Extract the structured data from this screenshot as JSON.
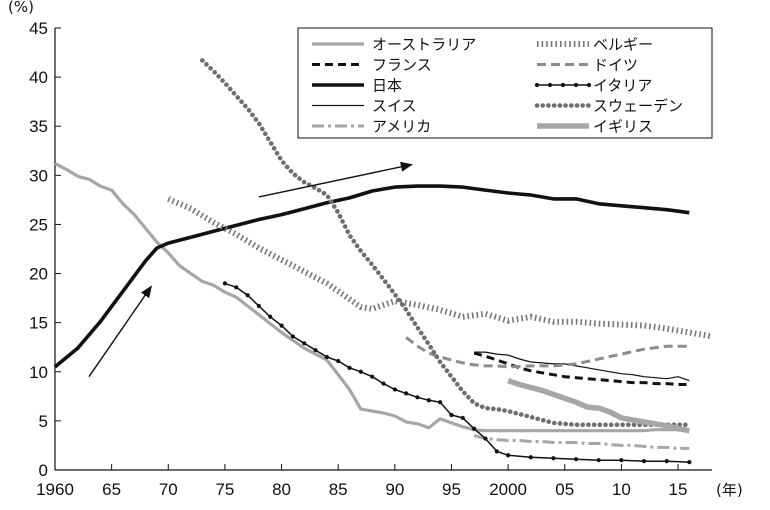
{
  "chart_data": {
    "type": "line",
    "y_unit_label": "(%)",
    "x_unit_label": "(年)",
    "ylim": [
      0,
      45
    ],
    "xlim": [
      1960,
      2018
    ],
    "y_ticks": [
      0,
      5,
      10,
      15,
      20,
      25,
      30,
      35,
      40,
      45
    ],
    "x_ticks": [
      {
        "value": 1960,
        "label": "1960"
      },
      {
        "value": 1965,
        "label": "65"
      },
      {
        "value": 1970,
        "label": "70"
      },
      {
        "value": 1975,
        "label": "75"
      },
      {
        "value": 1980,
        "label": "80"
      },
      {
        "value": 1985,
        "label": "85"
      },
      {
        "value": 1990,
        "label": "90"
      },
      {
        "value": 1995,
        "label": "95"
      },
      {
        "value": 2000,
        "label": "2000"
      },
      {
        "value": 2005,
        "label": "05"
      },
      {
        "value": 2010,
        "label": "10"
      },
      {
        "value": 2015,
        "label": "15"
      }
    ],
    "grid": false,
    "legend_position": "top-right",
    "annotations": [
      {
        "type": "arrow",
        "from": [
          1963,
          9.5
        ],
        "to": [
          1968.5,
          18.7
        ]
      },
      {
        "type": "arrow",
        "from": [
          1978,
          27.8
        ],
        "to": [
          1991.5,
          31.1
        ]
      }
    ],
    "series": [
      {
        "name": "オーストラリア",
        "style": "thick-gray-solid",
        "color": "#a6a6a6",
        "x": [
          1960,
          1961,
          1962,
          1963,
          1964,
          1965,
          1966,
          1967,
          1968,
          1969,
          1970,
          1971,
          1972,
          1973,
          1974,
          1975,
          1976,
          1977,
          1978,
          1979,
          1980,
          1981,
          1982,
          1983,
          1984,
          1985,
          1986,
          1987,
          1988,
          1989,
          1990,
          1991,
          1992,
          1993,
          1994,
          1995,
          1996,
          1997,
          1998,
          1999,
          2000,
          2001,
          2002,
          2003,
          2004,
          2005,
          2006,
          2007,
          2008,
          2009,
          2010,
          2011,
          2012,
          2013,
          2014,
          2015,
          2016
        ],
        "y": [
          31.2,
          30.6,
          29.9,
          29.6,
          28.9,
          28.5,
          27.1,
          26.0,
          24.6,
          23.2,
          22.1,
          20.8,
          20.0,
          19.2,
          18.8,
          18.1,
          17.6,
          16.7,
          15.8,
          14.9,
          14.0,
          13.2,
          12.4,
          11.8,
          11.2,
          9.7,
          8.2,
          6.2,
          6.0,
          5.8,
          5.5,
          4.9,
          4.7,
          4.3,
          5.2,
          4.8,
          4.4,
          4.1,
          4.0,
          4.0,
          4.0,
          4.0,
          4.0,
          4.0,
          4.0,
          4.0,
          4.0,
          4.0,
          4.0,
          4.0,
          4.0,
          4.0,
          4.0,
          4.1,
          4.1,
          4.1,
          4.1
        ]
      },
      {
        "name": "フランス",
        "style": "thick-black-dashed",
        "color": "#111111",
        "x": [
          1997,
          1998,
          1999,
          2000,
          2001,
          2002,
          2003,
          2004,
          2005,
          2006,
          2007,
          2008,
          2009,
          2010,
          2011,
          2012,
          2013,
          2014,
          2015,
          2016
        ],
        "y": [
          11.9,
          11.6,
          11.2,
          10.8,
          10.4,
          10.1,
          9.9,
          9.7,
          9.5,
          9.4,
          9.3,
          9.2,
          9.1,
          9.0,
          8.9,
          8.9,
          8.8,
          8.8,
          8.7,
          8.7
        ]
      },
      {
        "name": "日本",
        "style": "very-thick-black-solid",
        "color": "#111111",
        "x": [
          1960,
          1962,
          1964,
          1966,
          1968,
          1969,
          1970,
          1972,
          1974,
          1976,
          1978,
          1980,
          1982,
          1984,
          1986,
          1988,
          1990,
          1992,
          1994,
          1996,
          1998,
          2000,
          2002,
          2004,
          2006,
          2008,
          2010,
          2012,
          2014,
          2016
        ],
        "y": [
          10.5,
          12.4,
          15.1,
          18.2,
          21.3,
          22.6,
          23.1,
          23.7,
          24.3,
          24.9,
          25.5,
          26.0,
          26.6,
          27.2,
          27.7,
          28.4,
          28.8,
          28.9,
          28.9,
          28.8,
          28.5,
          28.2,
          28.0,
          27.6,
          27.6,
          27.1,
          26.9,
          26.7,
          26.5,
          26.2
        ]
      },
      {
        "name": "スイス",
        "style": "thin-black-solid",
        "color": "#111111",
        "x": [
          1997,
          1998,
          1999,
          2000,
          2001,
          2002,
          2003,
          2004,
          2005,
          2006,
          2007,
          2008,
          2009,
          2010,
          2011,
          2012,
          2013,
          2014,
          2015,
          2016
        ],
        "y": [
          12.0,
          12.0,
          11.8,
          11.7,
          11.3,
          11.0,
          10.9,
          10.8,
          10.8,
          10.6,
          10.4,
          10.2,
          10.0,
          9.8,
          9.7,
          9.5,
          9.4,
          9.3,
          9.5,
          9.1
        ]
      },
      {
        "name": "アメリカ",
        "style": "gray-dash-dot",
        "color": "#a6a6a6",
        "x": [
          1997,
          1998,
          1999,
          2000,
          2001,
          2002,
          2003,
          2004,
          2005,
          2006,
          2007,
          2008,
          2009,
          2010,
          2011,
          2012,
          2013,
          2014,
          2015,
          2016
        ],
        "y": [
          3.5,
          3.2,
          3.1,
          3.0,
          3.0,
          2.9,
          2.9,
          2.8,
          2.8,
          2.8,
          2.7,
          2.7,
          2.6,
          2.5,
          2.5,
          2.4,
          2.3,
          2.3,
          2.2,
          2.2
        ]
      },
      {
        "name": "ベルギー",
        "style": "gray-vertical-hatch",
        "color": "#777777",
        "x": [
          1970,
          1972,
          1974,
          1976,
          1978,
          1980,
          1982,
          1984,
          1986,
          1987,
          1988,
          1990,
          1992,
          1994,
          1996,
          1998,
          2000,
          2002,
          2004,
          2006,
          2008,
          2010,
          2012,
          2014,
          2016,
          2018
        ],
        "y": [
          27.6,
          26.6,
          25.2,
          24.0,
          22.6,
          21.4,
          20.2,
          19.0,
          17.4,
          16.6,
          16.4,
          17.2,
          16.8,
          16.3,
          15.6,
          15.9,
          15.2,
          15.6,
          15.1,
          15.1,
          14.9,
          14.8,
          14.7,
          14.4,
          14.0,
          13.6
        ]
      },
      {
        "name": "ドイツ",
        "style": "gray-dashed",
        "color": "#8c8c8c",
        "x": [
          1991,
          1992,
          1993,
          1994,
          1995,
          1996,
          1997,
          1998,
          1999,
          2000,
          2002,
          2004,
          2006,
          2008,
          2010,
          2012,
          2014,
          2016
        ],
        "y": [
          13.5,
          12.6,
          11.9,
          11.5,
          11.2,
          10.9,
          10.7,
          10.6,
          10.6,
          10.5,
          10.6,
          10.6,
          10.8,
          11.3,
          11.8,
          12.3,
          12.6,
          12.6
        ]
      },
      {
        "name": "イタリア",
        "style": "black-dot-line",
        "color": "#111111",
        "x": [
          1975,
          1976,
          1977,
          1978,
          1979,
          1980,
          1981,
          1982,
          1983,
          1984,
          1985,
          1986,
          1987,
          1988,
          1989,
          1990,
          1991,
          1992,
          1993,
          1994,
          1995,
          1996,
          1997,
          1998,
          1999,
          2000,
          2002,
          2004,
          2006,
          2008,
          2010,
          2012,
          2014,
          2016
        ],
        "y": [
          19.0,
          18.6,
          17.8,
          16.7,
          15.6,
          14.7,
          13.6,
          12.9,
          12.2,
          11.5,
          11.1,
          10.4,
          10.0,
          9.5,
          8.8,
          8.2,
          7.8,
          7.4,
          7.1,
          6.9,
          5.6,
          5.3,
          4.2,
          3.2,
          1.9,
          1.5,
          1.3,
          1.2,
          1.1,
          1.0,
          1.0,
          0.9,
          0.9,
          0.8
        ]
      },
      {
        "name": "スウェーデン",
        "style": "gray-big-dots",
        "color": "#6e6e6e",
        "x": [
          1973,
          1974,
          1975,
          1976,
          1977,
          1978,
          1979,
          1980,
          1981,
          1982,
          1983,
          1984,
          1985,
          1986,
          1987,
          1988,
          1989,
          1990,
          1991,
          1992,
          1993,
          1994,
          1995,
          1996,
          1997,
          1998,
          1999,
          2000,
          2002,
          2004,
          2006,
          2008,
          2010,
          2012,
          2014,
          2016
        ],
        "y": [
          41.7,
          40.6,
          39.4,
          38.1,
          36.8,
          35.3,
          33.4,
          31.5,
          30.2,
          29.3,
          28.7,
          28.0,
          26.2,
          23.9,
          22.3,
          20.9,
          19.4,
          17.9,
          16.3,
          14.5,
          12.8,
          11.0,
          9.5,
          8.0,
          6.8,
          6.3,
          6.2,
          6.0,
          5.4,
          4.8,
          4.6,
          4.6,
          4.6,
          4.6,
          4.6,
          4.6
        ]
      },
      {
        "name": "イギリス",
        "style": "very-thick-gray-solid",
        "color": "#a6a6a6",
        "x": [
          2000,
          2001,
          2002,
          2003,
          2004,
          2005,
          2006,
          2007,
          2008,
          2009,
          2010,
          2011,
          2012,
          2013,
          2014,
          2015,
          2016
        ],
        "y": [
          9.1,
          8.7,
          8.4,
          8.1,
          7.7,
          7.3,
          6.9,
          6.4,
          6.3,
          5.9,
          5.3,
          5.1,
          4.9,
          4.7,
          4.5,
          4.2,
          4.0
        ]
      }
    ]
  }
}
